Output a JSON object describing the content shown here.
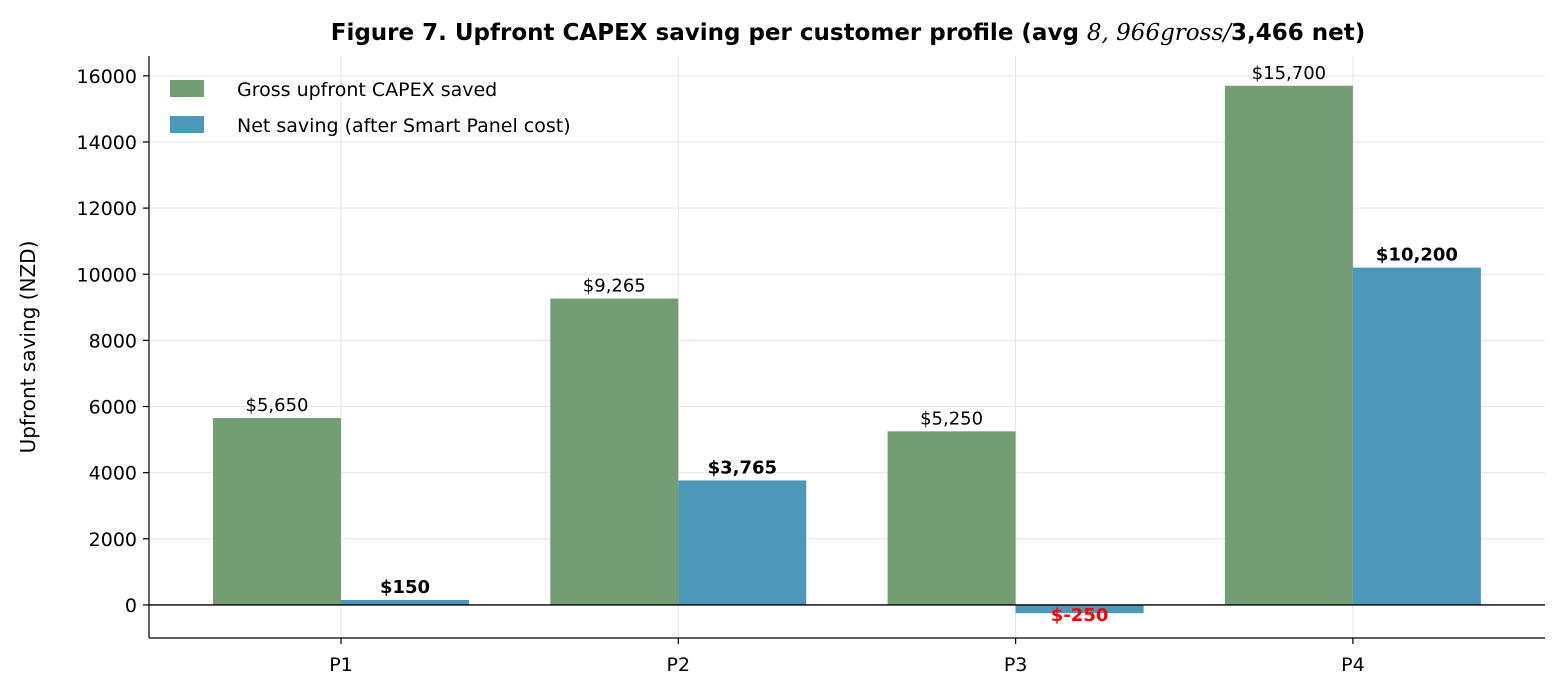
{
  "chart_data": {
    "type": "bar",
    "title_parts": [
      {
        "text": "Figure 7. Upfront CAPEX saving per customer profile (avg ",
        "style": "bold"
      },
      {
        "text": "8, 966gross/",
        "style": "math"
      },
      {
        "text": "3,466 net)",
        "style": "bold"
      }
    ],
    "title": "Figure 7. Upfront CAPEX saving per customer profile (avg 8, 966gross/3,466 net)",
    "xlabel": "",
    "ylabel": "Upfront saving (NZD)",
    "categories": [
      "P1",
      "P2",
      "P3",
      "P4"
    ],
    "ylim": [
      -1000,
      16600
    ],
    "yticks": [
      0,
      2000,
      4000,
      6000,
      8000,
      10000,
      12000,
      14000,
      16000
    ],
    "grid": true,
    "legend_position": "top-left",
    "series": [
      {
        "name": "Gross upfront CAPEX saved",
        "color": "#739e73",
        "values": [
          5650,
          9265,
          5250,
          15700
        ],
        "labels": [
          "$5,650",
          "$9,265",
          "$5,250",
          "$15,700"
        ]
      },
      {
        "name": "Net saving (after Smart Panel cost)",
        "color": "#4c98b8",
        "values": [
          150,
          3765,
          -250,
          10200
        ],
        "labels": [
          "$150",
          "$3,765",
          "$-250",
          "$10,200"
        ],
        "label_colors": [
          "#000000",
          "#000000",
          "#ff0000",
          "#000000"
        ]
      }
    ]
  }
}
